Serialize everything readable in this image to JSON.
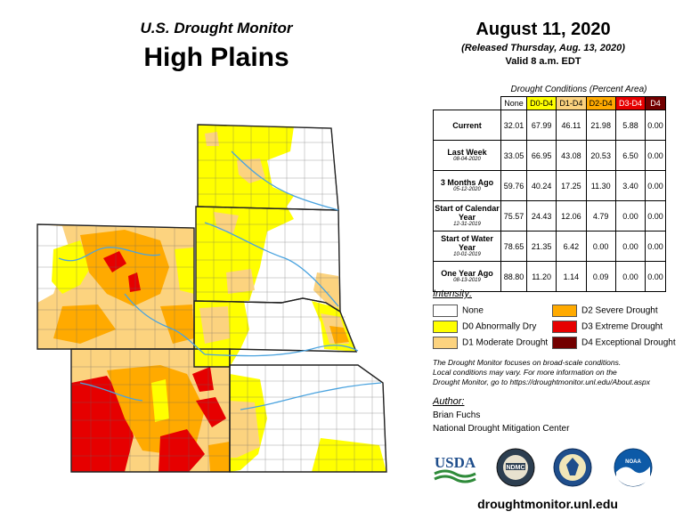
{
  "header": {
    "brand": "U.S. Drought Monitor",
    "region": "High Plains",
    "date": "August 11, 2020",
    "released": "(Released Thursday, Aug. 13, 2020)",
    "valid": "Valid 8 a.m. EDT"
  },
  "table": {
    "caption": "Drought Conditions (Percent Area)",
    "columns": [
      {
        "label": "None",
        "color": "#ffffff"
      },
      {
        "label": "D0-D4",
        "color": "#ffff00"
      },
      {
        "label": "D1-D4",
        "color": "#fcd37f"
      },
      {
        "label": "D2-D4",
        "color": "#ffaa00"
      },
      {
        "label": "D3-D4",
        "color": "#e60000"
      },
      {
        "label": "D4",
        "color": "#730000"
      }
    ],
    "rows": [
      {
        "label": "Current",
        "sub": "",
        "values": [
          "32.01",
          "67.99",
          "46.11",
          "21.98",
          "5.88",
          "0.00"
        ]
      },
      {
        "label": "Last Week",
        "sub": "08-04-2020",
        "values": [
          "33.05",
          "66.95",
          "43.08",
          "20.53",
          "6.50",
          "0.00"
        ]
      },
      {
        "label": "3 Months Ago",
        "sub": "05-12-2020",
        "values": [
          "59.76",
          "40.24",
          "17.25",
          "11.30",
          "3.40",
          "0.00"
        ]
      },
      {
        "label": "Start of Calendar Year",
        "sub": "12-31-2019",
        "values": [
          "75.57",
          "24.43",
          "12.06",
          "4.79",
          "0.00",
          "0.00"
        ]
      },
      {
        "label": "Start of Water Year",
        "sub": "10-01-2019",
        "values": [
          "78.65",
          "21.35",
          "6.42",
          "0.00",
          "0.00",
          "0.00"
        ]
      },
      {
        "label": "One Year Ago",
        "sub": "08-13-2019",
        "values": [
          "88.80",
          "11.20",
          "1.14",
          "0.09",
          "0.00",
          "0.00"
        ]
      }
    ]
  },
  "legend": {
    "title": "Intensity:",
    "items": [
      {
        "label": "None",
        "color": "#ffffff"
      },
      {
        "label": "D0 Abnormally Dry",
        "color": "#ffff00"
      },
      {
        "label": "D1 Moderate Drought",
        "color": "#fcd37f"
      },
      {
        "label": "D2 Severe Drought",
        "color": "#ffaa00"
      },
      {
        "label": "D3 Extreme Drought",
        "color": "#e60000"
      },
      {
        "label": "D4 Exceptional Drought",
        "color": "#730000"
      }
    ]
  },
  "note": {
    "line1": "The Drought Monitor focuses on broad-scale conditions.",
    "line2": "Local conditions may vary. For more information on the",
    "line3": "Drought Monitor, go to https://droughtmonitor.unl.edu/About.aspx"
  },
  "author": {
    "heading": "Author:",
    "name": "Brian Fuchs",
    "org": "National Drought Mitigation Center"
  },
  "logos": {
    "usda": "USDA",
    "ndmc": "NDMC",
    "noaa": "NOAA"
  },
  "footer": {
    "url": "droughtmonitor.unl.edu"
  },
  "colors": {
    "none": "#ffffff",
    "d0": "#ffff00",
    "d1": "#fcd37f",
    "d2": "#ffaa00",
    "d3": "#e60000",
    "d4": "#730000",
    "river": "#4aa3df"
  }
}
